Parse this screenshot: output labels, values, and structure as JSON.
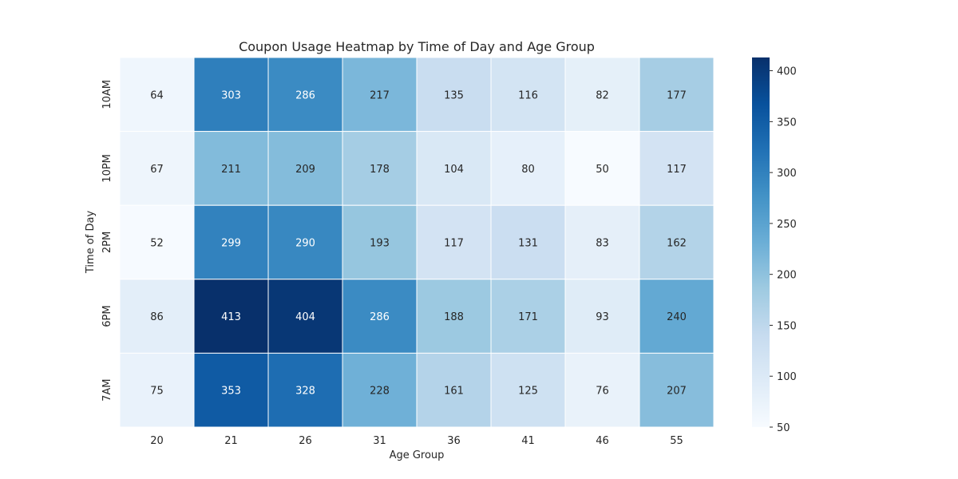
{
  "chart_data": {
    "type": "heatmap",
    "title": "Coupon Usage Heatmap by Time of Day and Age Group",
    "xlabel": "Age Group",
    "ylabel": "Time of Day",
    "x_categories": [
      "20",
      "21",
      "26",
      "31",
      "36",
      "41",
      "46",
      "55"
    ],
    "y_categories": [
      "10AM",
      "10PM",
      "2PM",
      "6PM",
      "7AM"
    ],
    "values": [
      [
        64,
        303,
        286,
        217,
        135,
        116,
        82,
        177
      ],
      [
        67,
        211,
        209,
        178,
        104,
        80,
        50,
        117
      ],
      [
        52,
        299,
        290,
        193,
        117,
        131,
        83,
        162
      ],
      [
        86,
        413,
        404,
        286,
        188,
        171,
        93,
        240
      ],
      [
        75,
        353,
        328,
        228,
        161,
        125,
        76,
        207
      ]
    ],
    "colormap": "Blues",
    "color_range": [
      50,
      413
    ],
    "colorbar_ticks": [
      "50",
      "100",
      "150",
      "200",
      "250",
      "300",
      "350",
      "400"
    ],
    "colors": {
      "low": "#f7fbff",
      "high": "#08306b",
      "cell_border": "#ffffff",
      "text_dark": "#262626",
      "text_light": "#ffffff"
    }
  }
}
